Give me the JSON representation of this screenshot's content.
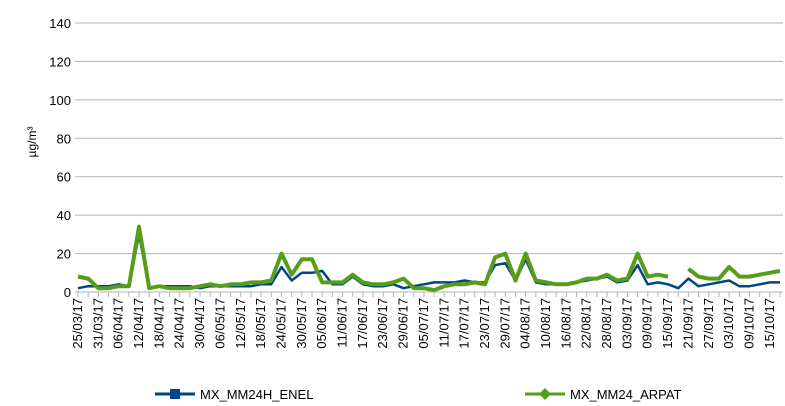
{
  "chart_data": {
    "type": "line",
    "y_label": "µg/m³",
    "categories": [
      "25/03/17",
      null,
      "31/03/17",
      null,
      "06/04/17",
      null,
      "12/04/17",
      null,
      "18/04/17",
      null,
      "24/04/17",
      null,
      "30/04/17",
      null,
      "06/05/17",
      null,
      "12/05/17",
      null,
      "18/05/17",
      null,
      "24/05/17",
      null,
      "30/05/17",
      null,
      "05/06/17",
      null,
      "11/06/17",
      null,
      "17/06/17",
      null,
      "23/06/17",
      null,
      "29/06/17",
      null,
      "05/07/17",
      null,
      "11/07/17",
      null,
      "17/07/17",
      null,
      "23/07/17",
      null,
      "29/07/17",
      null,
      "04/08/17",
      null,
      "10/08/17",
      null,
      "16/08/17",
      null,
      "22/08/17",
      null,
      "28/08/17",
      null,
      "03/09/17",
      null,
      "09/09/17",
      null,
      "15/09/17",
      null,
      "21/09/17",
      null,
      "27/09/17",
      null,
      "03/10/17",
      null,
      "09/10/17",
      null,
      "15/10/17",
      null
    ],
    "series": [
      {
        "name": "MX_MM24H_ENEL",
        "color": "#004586",
        "marker": "square",
        "values": [
          2,
          3,
          3,
          3,
          4,
          3,
          30,
          2,
          3,
          3,
          3,
          3,
          2,
          3,
          3,
          3,
          3,
          3,
          4,
          4,
          13,
          6,
          10,
          10,
          11,
          4,
          4,
          8,
          4,
          3,
          3,
          4,
          2,
          3,
          4,
          5,
          5,
          5,
          6,
          5,
          5,
          14,
          15,
          6,
          17,
          5,
          4,
          4,
          4,
          5,
          6,
          7,
          8,
          5,
          6,
          14,
          4,
          5,
          4,
          2,
          7,
          3,
          4,
          5,
          6,
          3,
          3,
          4,
          5,
          5
        ]
      },
      {
        "name": "MX_MM24_ARPAT",
        "color": "#579d1c",
        "marker": "diamond",
        "values": [
          8,
          7,
          2,
          2,
          3,
          3,
          34,
          2,
          3,
          2,
          2,
          2,
          3,
          4,
          3,
          4,
          4,
          5,
          5,
          6,
          20,
          9,
          17,
          17,
          5,
          5,
          5,
          9,
          5,
          4,
          4,
          5,
          7,
          2,
          2,
          1,
          3,
          4,
          4,
          5,
          4,
          18,
          20,
          6,
          20,
          6,
          5,
          4,
          4,
          5,
          7,
          7,
          9,
          6,
          7,
          20,
          8,
          9,
          8,
          null,
          12,
          8,
          7,
          7,
          13,
          8,
          8,
          9,
          10,
          11
        ]
      }
    ],
    "ylim": [
      0,
      140
    ],
    "yticks": [
      0,
      20,
      40,
      60,
      80,
      100,
      120,
      140
    ],
    "grid": true
  }
}
